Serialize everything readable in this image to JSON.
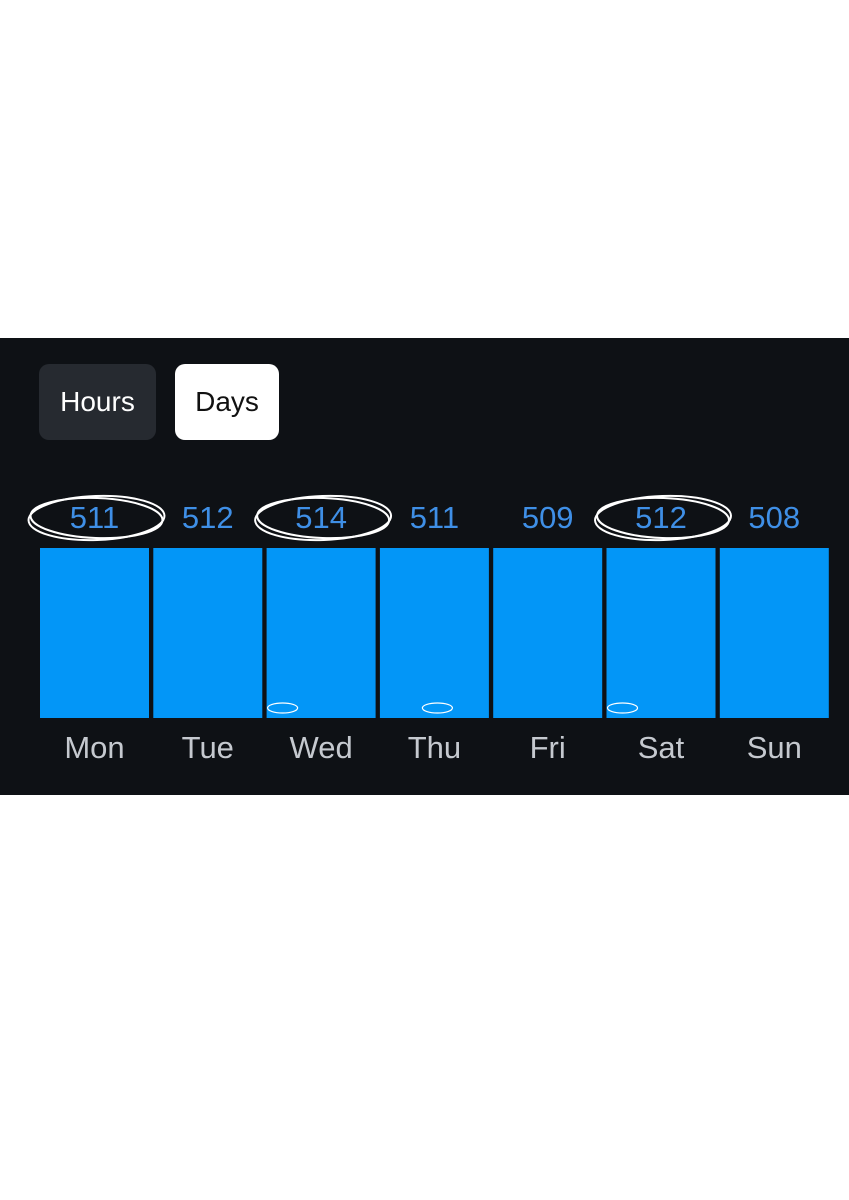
{
  "toggle": {
    "options": [
      "Hours",
      "Days"
    ],
    "selected": "Days"
  },
  "colors": {
    "background": "#0e1115",
    "bar": "#0396f7",
    "value_label": "#3f8fe6",
    "day_label": "#c5c9cf",
    "annotation": "#ffffff"
  },
  "chart_data": {
    "type": "bar",
    "title": "",
    "xlabel": "",
    "ylabel": "",
    "categories": [
      "Mon",
      "Tue",
      "Wed",
      "Thu",
      "Fri",
      "Sat",
      "Sun"
    ],
    "values": [
      511,
      512,
      514,
      511,
      509,
      512,
      508
    ],
    "data_labels": true,
    "grid": false,
    "legend": "none",
    "annotations": {
      "circled_values": [
        "Mon",
        "Wed",
        "Sat"
      ],
      "small_marks_at_bar_base": [
        "Wed",
        "Thu",
        "Sat"
      ]
    }
  }
}
